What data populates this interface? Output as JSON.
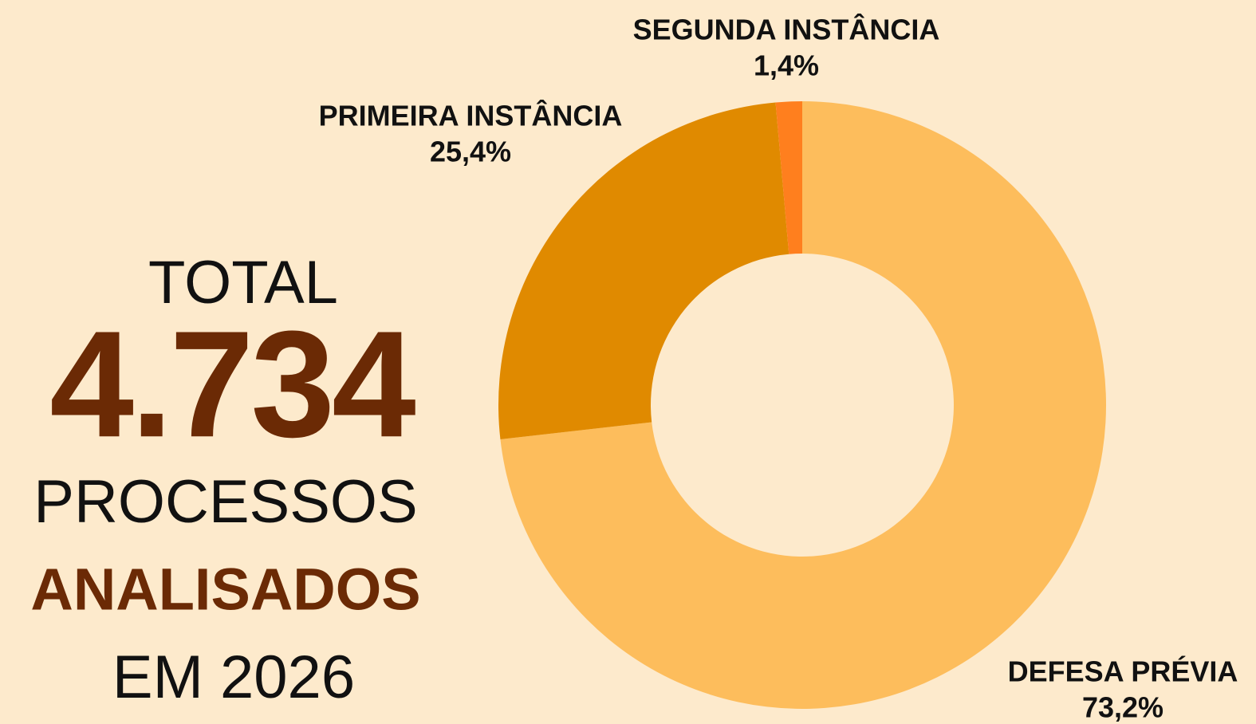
{
  "chart_data": {
    "type": "donut",
    "categories": [
      "DEFESA PRÉVIA",
      "PRIMEIRA INSTÂNCIA",
      "SEGUNDA INSTÂNCIA"
    ],
    "values": [
      73.2,
      25.4,
      1.4
    ],
    "value_labels": [
      "73,2%",
      "25,4%",
      "1,4%"
    ],
    "colors": [
      "#fdbd5c",
      "#e08a00",
      "#ff7f1e"
    ],
    "annotations": [
      "TOTAL",
      "4.734",
      "PROCESSOS",
      "ANALISADOS",
      "EM 2026"
    ]
  }
}
